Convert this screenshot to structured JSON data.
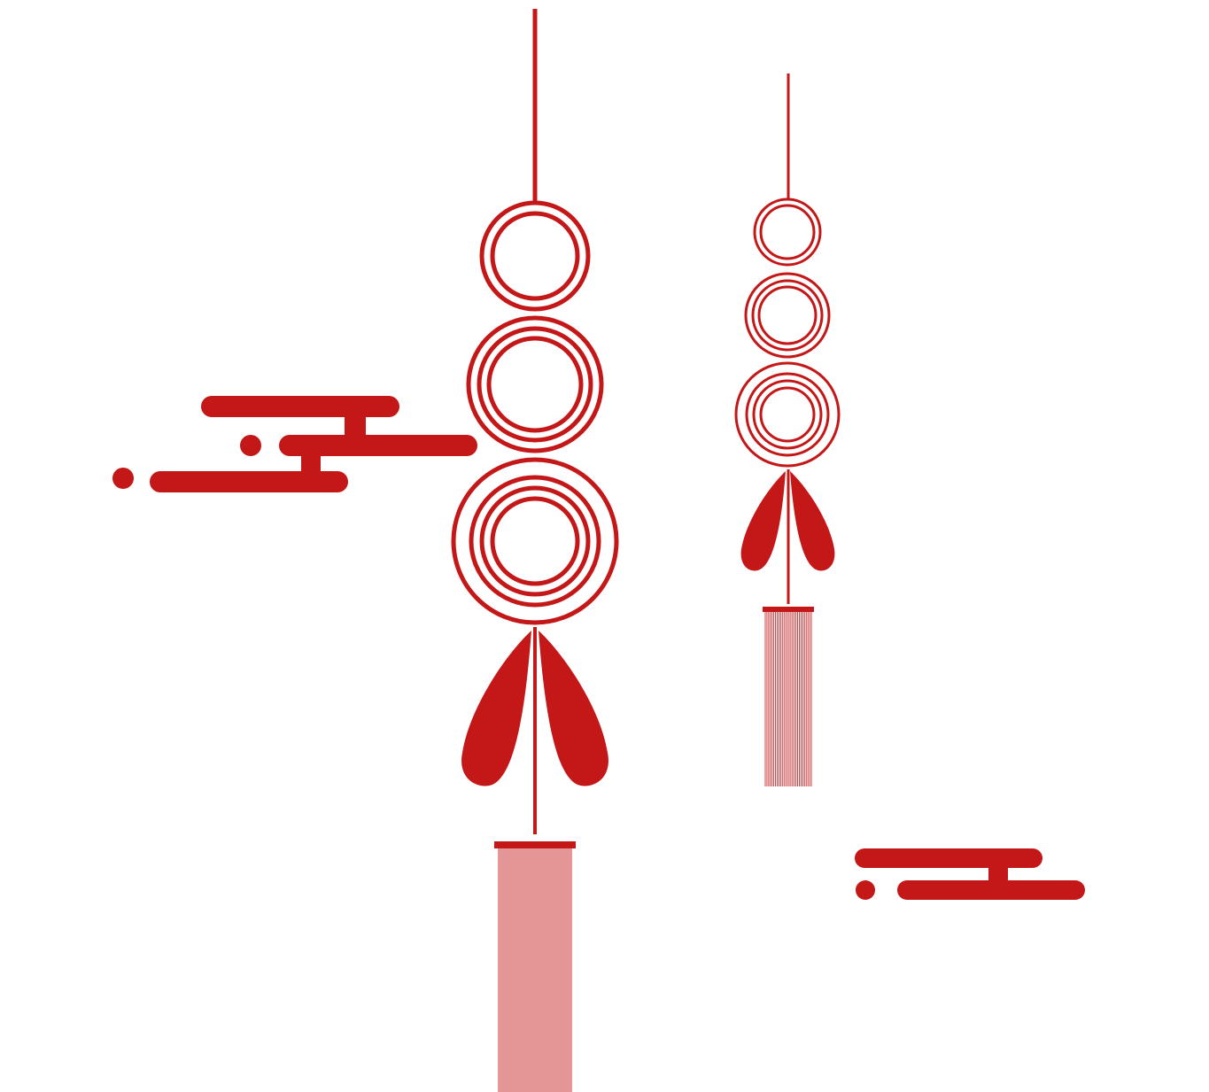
{
  "palette": {
    "ornament_red": "#c41718",
    "background": "#ffffff"
  },
  "decorations": {
    "large_tassel_ornament": {
      "icon": "chinese-knot-tassel-icon",
      "ring_groups": 3
    },
    "small_tassel_ornament": {
      "icon": "chinese-knot-tassel-icon",
      "ring_groups": 3
    },
    "cloud_left": {
      "icon": "auspicious-cloud-icon"
    },
    "cloud_right": {
      "icon": "auspicious-cloud-icon"
    }
  }
}
